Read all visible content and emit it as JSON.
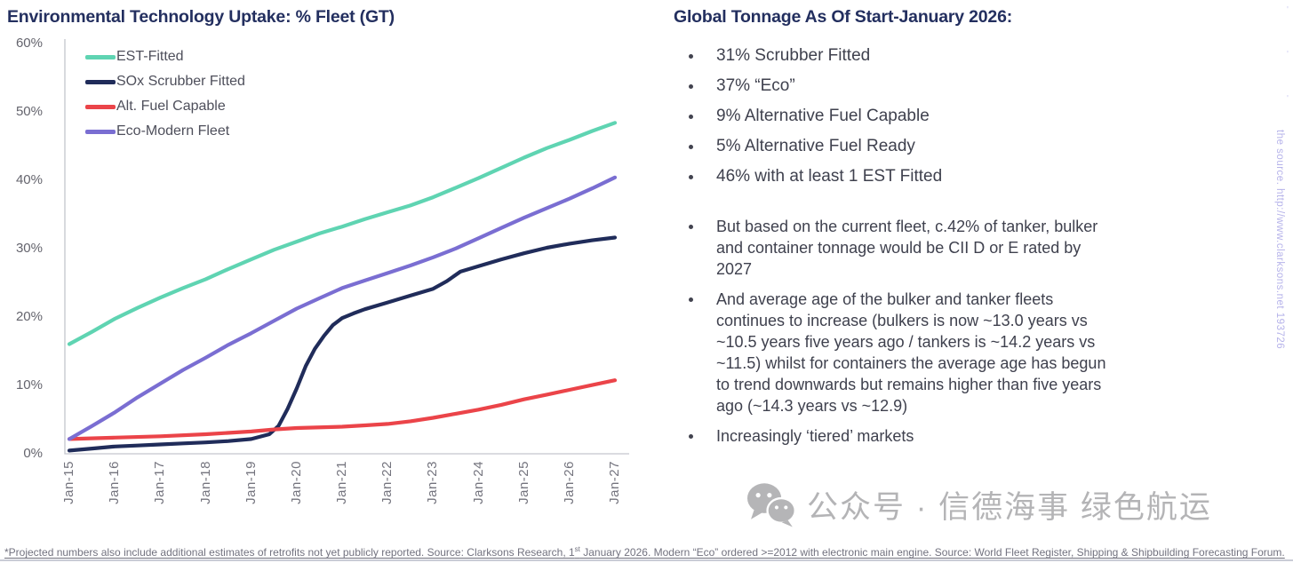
{
  "left_panel": {
    "title": "Environmental Technology Uptake: % Fleet (GT)"
  },
  "chart_data": {
    "type": "line",
    "title": "Environmental Technology Uptake: % Fleet (GT)",
    "x_tick_labels": [
      "Jan-15",
      "Jan-16",
      "Jan-17",
      "Jan-18",
      "Jan-19",
      "Jan-20",
      "Jan-21",
      "Jan-22",
      "Jan-23",
      "Jan-24",
      "Jan-25",
      "Jan-26",
      "Jan-27"
    ],
    "y_tick_labels": [
      "0%",
      "10%",
      "20%",
      "30%",
      "40%",
      "50%",
      "60%"
    ],
    "ylim": [
      0,
      60
    ],
    "x_range_years": [
      2015,
      2027
    ],
    "grid": false,
    "legend_position": "top-left",
    "series": [
      {
        "name": "EST-Fitted",
        "color": "#5fd4b2",
        "points": [
          [
            2015,
            16
          ],
          [
            2015.5,
            17.8
          ],
          [
            2016,
            19.7
          ],
          [
            2016.5,
            21.3
          ],
          [
            2017,
            22.8
          ],
          [
            2017.5,
            24.2
          ],
          [
            2018,
            25.5
          ],
          [
            2018.5,
            27
          ],
          [
            2019,
            28.4
          ],
          [
            2019.5,
            29.8
          ],
          [
            2020,
            31
          ],
          [
            2020.5,
            32.2
          ],
          [
            2021,
            33.2
          ],
          [
            2021.5,
            34.3
          ],
          [
            2022,
            35.3
          ],
          [
            2022.5,
            36.3
          ],
          [
            2023,
            37.5
          ],
          [
            2023.5,
            38.9
          ],
          [
            2024,
            40.3
          ],
          [
            2024.5,
            41.8
          ],
          [
            2025,
            43.3
          ],
          [
            2025.5,
            44.7
          ],
          [
            2026,
            45.9
          ],
          [
            2026.5,
            47.2
          ],
          [
            2027,
            48.4
          ]
        ]
      },
      {
        "name": "SOx Scrubber Fitted",
        "color": "#202c5a",
        "points": [
          [
            2015,
            0.4
          ],
          [
            2015.5,
            0.7
          ],
          [
            2016,
            1.0
          ],
          [
            2016.5,
            1.15
          ],
          [
            2017,
            1.3
          ],
          [
            2017.5,
            1.45
          ],
          [
            2018,
            1.6
          ],
          [
            2018.5,
            1.8
          ],
          [
            2019,
            2.1
          ],
          [
            2019.4,
            2.8
          ],
          [
            2019.6,
            4.0
          ],
          [
            2019.8,
            6.5
          ],
          [
            2020,
            9.5
          ],
          [
            2020.2,
            12.8
          ],
          [
            2020.4,
            15.3
          ],
          [
            2020.6,
            17.2
          ],
          [
            2020.8,
            18.8
          ],
          [
            2021,
            19.8
          ],
          [
            2021.25,
            20.5
          ],
          [
            2021.5,
            21.1
          ],
          [
            2022,
            22.1
          ],
          [
            2022.5,
            23.1
          ],
          [
            2023,
            24.1
          ],
          [
            2023.3,
            25.2
          ],
          [
            2023.6,
            26.6
          ],
          [
            2024,
            27.4
          ],
          [
            2024.5,
            28.4
          ],
          [
            2025,
            29.3
          ],
          [
            2025.5,
            30.1
          ],
          [
            2026,
            30.7
          ],
          [
            2026.5,
            31.2
          ],
          [
            2027,
            31.6
          ]
        ]
      },
      {
        "name": "Alt. Fuel Capable",
        "color": "#eb4449",
        "points": [
          [
            2015,
            2.1
          ],
          [
            2016,
            2.3
          ],
          [
            2017,
            2.5
          ],
          [
            2018,
            2.8
          ],
          [
            2019,
            3.2
          ],
          [
            2019.5,
            3.5
          ],
          [
            2020,
            3.7
          ],
          [
            2021,
            3.9
          ],
          [
            2021.5,
            4.1
          ],
          [
            2022,
            4.3
          ],
          [
            2022.5,
            4.7
          ],
          [
            2023,
            5.2
          ],
          [
            2023.5,
            5.8
          ],
          [
            2024,
            6.4
          ],
          [
            2024.5,
            7.1
          ],
          [
            2025,
            7.9
          ],
          [
            2025.5,
            8.6
          ],
          [
            2026,
            9.3
          ],
          [
            2026.5,
            10
          ],
          [
            2027,
            10.7
          ]
        ]
      },
      {
        "name": "Eco-Modern Fleet",
        "color": "#7a6ed2",
        "points": [
          [
            2015,
            2.1
          ],
          [
            2015.5,
            4
          ],
          [
            2016,
            6
          ],
          [
            2016.5,
            8.2
          ],
          [
            2017,
            10.2
          ],
          [
            2017.5,
            12.2
          ],
          [
            2018,
            14
          ],
          [
            2018.5,
            15.9
          ],
          [
            2019,
            17.6
          ],
          [
            2019.5,
            19.4
          ],
          [
            2020,
            21.2
          ],
          [
            2020.5,
            22.7
          ],
          [
            2021,
            24.2
          ],
          [
            2021.5,
            25.3
          ],
          [
            2022,
            26.4
          ],
          [
            2022.5,
            27.5
          ],
          [
            2023,
            28.7
          ],
          [
            2023.5,
            30
          ],
          [
            2024,
            31.5
          ],
          [
            2024.5,
            33
          ],
          [
            2025,
            34.5
          ],
          [
            2025.5,
            35.9
          ],
          [
            2026,
            37.3
          ],
          [
            2026.5,
            38.8
          ],
          [
            2027,
            40.4
          ]
        ]
      }
    ]
  },
  "right_panel": {
    "title": "Global Tonnage As Of Start-January 2026:",
    "stats_bullets": [
      "31% Scrubber Fitted",
      "37% “Eco”",
      "9% Alternative Fuel Capable",
      "5% Alternative Fuel Ready",
      "46% with at least 1 EST Fitted"
    ],
    "narrative_bullets": [
      "But based on the current fleet, c.42% of tanker, bulker and container tonnage would be CII D or E rated by 2027",
      "And average age of the bulker and tanker fleets continues to increase (bulkers is now ~13.0 years vs ~10.5 years five years ago / tankers is ~14.2 years vs ~11.5) whilst for containers the average age has begun to trend downwards but remains higher than five years ago (~14.3 years vs ~12.9)",
      "Increasingly ‘tiered’ markets"
    ]
  },
  "footer": {
    "text_before_sup": "*Projected numbers also include additional estimates of retrofits not yet publicly reported. Source: Clarksons Research, 1",
    "sup": "st",
    "text_after_sup": " January 2026. Modern “Eco” ordered >=2012 with electronic main engine. Source: World Fleet Register, Shipping & Shipbuilding Forecasting Forum."
  },
  "watermarks": {
    "side_vertical": "the source. http://www.clarksons.net 193726",
    "edge_marks": [
      "'",
      "'",
      "'"
    ],
    "wechat_text": "公众号 · 信德海事 绿色航运"
  },
  "colors": {
    "title_navy": "#232f5f",
    "body_text": "#3f414e",
    "axis_label_gray": "#6e6e78",
    "axis_line": "#c4c5cd",
    "footer_gray": "#72727f",
    "watermark_lavender": "#b6b3ea",
    "watermark_gray": "#b4b4b6",
    "series_teal": "#5fd4b2",
    "series_navy": "#202c5a",
    "series_red": "#eb4449",
    "series_purple": "#7a6ed2"
  }
}
